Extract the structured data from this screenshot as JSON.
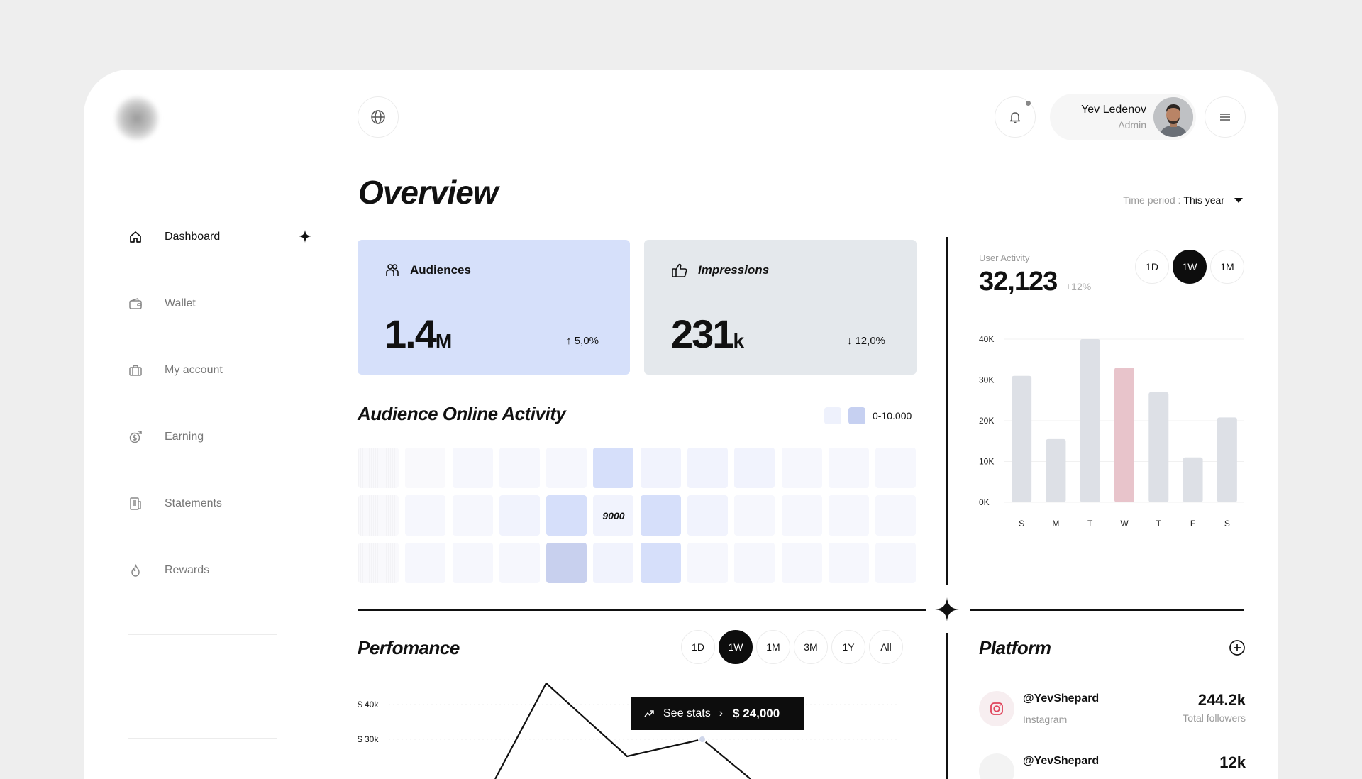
{
  "header": {
    "user_name": "Yev Ledenov",
    "user_role": "Admin"
  },
  "sidebar": {
    "items": [
      {
        "label": "Dashboard",
        "icon": "home-icon"
      },
      {
        "label": "Wallet",
        "icon": "wallet-icon"
      },
      {
        "label": "My account",
        "icon": "briefcase-icon"
      },
      {
        "label": "Earning",
        "icon": "coin-icon"
      },
      {
        "label": "Statements",
        "icon": "document-icon"
      },
      {
        "label": "Rewards",
        "icon": "flame-icon"
      }
    ],
    "active": "Dashboard"
  },
  "overview": {
    "title": "Overview",
    "period_label": "Time period :",
    "period_value": "This year"
  },
  "cards": {
    "audiences": {
      "label": "Audiences",
      "value": "1.4",
      "unit": "M",
      "delta": "↑ 5,0%",
      "color": "#d6e0fa"
    },
    "impressions": {
      "label": "Impressions",
      "value": "231",
      "unit": "k",
      "delta": "↓ 12,0%",
      "color": "#e4e8ec"
    }
  },
  "audience_activity": {
    "title": "Audience Online Activity",
    "legend_range": "0-10.000",
    "highlight_value": "9000",
    "levels": [
      [
        0,
        0,
        1,
        1,
        1,
        4,
        2,
        2,
        2,
        1,
        1,
        1
      ],
      [
        0,
        1,
        1,
        2,
        4,
        9,
        4,
        2,
        1,
        1,
        1,
        1
      ],
      [
        0,
        1,
        1,
        1,
        6,
        2,
        4,
        1,
        1,
        1,
        1,
        1
      ]
    ]
  },
  "user_activity": {
    "label": "User Activity",
    "value": "32,123",
    "change": "+12%",
    "ranges": [
      "1D",
      "1W",
      "1M"
    ],
    "selected": "1W"
  },
  "chart_data": [
    {
      "type": "bar",
      "categories": [
        "S",
        "M",
        "T",
        "W",
        "T",
        "F",
        "S"
      ],
      "values": [
        31,
        15.5,
        40,
        33,
        27,
        11,
        20.8
      ],
      "highlight_index": 3,
      "bar_color": "#dde0e6",
      "highlight_color": "#e8c4cb",
      "y_ticks": [
        "0K",
        "10K",
        "20K",
        "30K",
        "40K"
      ],
      "ylim": [
        0,
        40
      ]
    },
    {
      "type": "line",
      "title": "Perfomance",
      "y_ticks": [
        "$ 40k",
        "$ 30k"
      ],
      "ranges": [
        "1D",
        "1W",
        "1M",
        "3M",
        "1Y",
        "All"
      ],
      "selected": "1W",
      "tooltip_label": "See stats",
      "tooltip_value": "$ 24,000"
    }
  ],
  "platform": {
    "title": "Platform",
    "rows": [
      {
        "handle": "@YevShepard",
        "network": "Instagram",
        "value": "244.2k",
        "caption": "Total followers"
      },
      {
        "handle": "@YevShepard",
        "value": "12k"
      }
    ]
  }
}
